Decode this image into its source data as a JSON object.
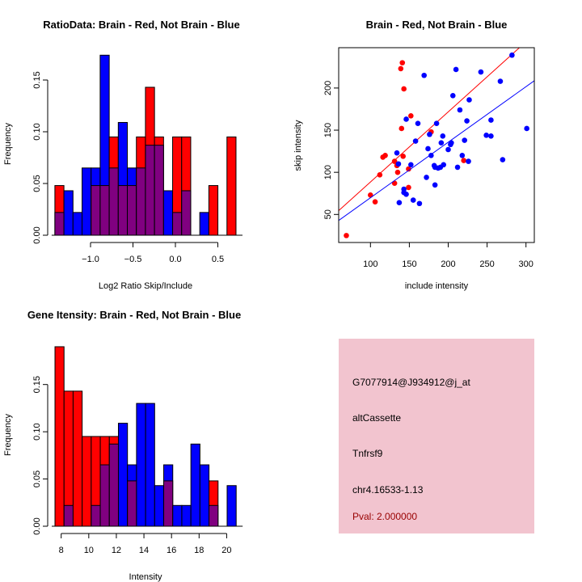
{
  "colors": {
    "red": "#ff0000",
    "blue": "#0000ff",
    "overlap": "#800080",
    "info_bg": "#f2c4cf",
    "pval": "#990000"
  },
  "chart_data": [
    {
      "type": "bar",
      "title": "RatioData: Brain - Red, Not Brain - Blue",
      "xlabel": "Log2 Ratio Skip/Include",
      "ylabel": "Frequency",
      "bin_start": -1.42,
      "bin_width": 0.1067,
      "xticks": [
        -1.0,
        -0.5,
        0.0,
        0.5
      ],
      "xtick_labels": [
        "−1.0",
        "−0.5",
        "0.0",
        "0.5"
      ],
      "yticks": [
        0,
        0.05,
        0.1,
        0.15
      ],
      "ytick_labels": [
        "0.00",
        "0.05",
        "0.10",
        "0.15"
      ],
      "series": [
        {
          "name": "Brain",
          "color": "red",
          "values": [
            0.048,
            0,
            0,
            0,
            0.048,
            0.048,
            0.095,
            0.048,
            0.048,
            0.095,
            0.143,
            0.095,
            0,
            0.095,
            0.095,
            0,
            0,
            0.048,
            0,
            0.095
          ]
        },
        {
          "name": "Not Brain",
          "color": "blue",
          "values": [
            0.022,
            0.043,
            0.022,
            0.065,
            0.065,
            0.174,
            0.065,
            0.109,
            0.065,
            0.065,
            0.087,
            0.087,
            0.043,
            0.022,
            0.043,
            0,
            0.022,
            0,
            0,
            0
          ]
        }
      ]
    },
    {
      "type": "scatter",
      "title": "Brain - Red, Not Brain - Blue",
      "xlabel": "include intensity",
      "ylabel": "skip intensity",
      "xlim": [
        59,
        310
      ],
      "ylim": [
        17,
        248
      ],
      "xticks": [
        100,
        150,
        200,
        250,
        300
      ],
      "xtick_labels": [
        "100",
        "150",
        "200",
        "250",
        "300"
      ],
      "yticks": [
        50,
        100,
        150,
        200
      ],
      "ytick_labels": [
        "50",
        "100",
        "150",
        "200"
      ],
      "series": [
        {
          "name": "Brain",
          "color": "red",
          "points": [
            [
              69,
              25
            ],
            [
              100,
              73
            ],
            [
              106,
              65
            ],
            [
              112,
              97
            ],
            [
              116,
              118
            ],
            [
              119,
              120
            ],
            [
              131,
              87
            ],
            [
              131,
              113
            ],
            [
              134,
              108
            ],
            [
              135,
              100
            ],
            [
              142,
              119
            ],
            [
              139,
              223
            ],
            [
              141,
              230
            ],
            [
              143,
              199
            ],
            [
              140,
              152
            ],
            [
              152,
              167
            ],
            [
              149,
              104
            ],
            [
              149,
              82
            ],
            [
              178,
              148
            ],
            [
              220,
              114
            ]
          ],
          "fit": {
            "slope": 0.832,
            "intercept": 5.3
          }
        },
        {
          "name": "Not Brain",
          "color": "blue",
          "points": [
            [
              134,
              123
            ],
            [
              136,
              110
            ],
            [
              137,
              64
            ],
            [
              143,
              80
            ],
            [
              143,
              76
            ],
            [
              146,
              74
            ],
            [
              146,
              163
            ],
            [
              152,
              109
            ],
            [
              155,
              67
            ],
            [
              158,
              137
            ],
            [
              161,
              158
            ],
            [
              163,
              63
            ],
            [
              169,
              215
            ],
            [
              172,
              94
            ],
            [
              174,
              128
            ],
            [
              176,
              145
            ],
            [
              178,
              120
            ],
            [
              182,
              108
            ],
            [
              183,
              106
            ],
            [
              187,
              105
            ],
            [
              190,
              106
            ],
            [
              194,
              109
            ],
            [
              183,
              85
            ],
            [
              185,
              158
            ],
            [
              191,
              135
            ],
            [
              193,
              143
            ],
            [
              200,
              127
            ],
            [
              203,
              133
            ],
            [
              204,
              135
            ],
            [
              206,
              191
            ],
            [
              210,
              222
            ],
            [
              212,
              106
            ],
            [
              215,
              174
            ],
            [
              218,
              120
            ],
            [
              221,
              138
            ],
            [
              224,
              161
            ],
            [
              226,
              113
            ],
            [
              227,
              186
            ],
            [
              242,
              219
            ],
            [
              249,
              144
            ],
            [
              255,
              143
            ],
            [
              255,
              162
            ],
            [
              267,
              208
            ],
            [
              270,
              115
            ],
            [
              282,
              239
            ],
            [
              301,
              152
            ]
          ],
          "fit": {
            "slope": 0.659,
            "intercept": 3.9
          }
        }
      ]
    },
    {
      "type": "bar",
      "title": "Gene Itensity: Brain - Red, Not Brain - Blue",
      "xlabel": "Intensity",
      "ylabel": "Frequency",
      "bin_start": 7.55,
      "bin_width": 0.657,
      "xticks": [
        8,
        10,
        12,
        14,
        16,
        18,
        20
      ],
      "xtick_labels": [
        "8",
        "10",
        "12",
        "14",
        "16",
        "18",
        "20"
      ],
      "yticks": [
        0,
        0.05,
        0.1,
        0.15
      ],
      "ytick_labels": [
        "0.00",
        "0.05",
        "0.10",
        "0.15"
      ],
      "series": [
        {
          "name": "Brain",
          "color": "red",
          "values": [
            0.19,
            0.143,
            0.143,
            0.095,
            0.095,
            0.095,
            0.095,
            0,
            0.048,
            0,
            0,
            0,
            0.048,
            0,
            0,
            0,
            0,
            0.048,
            0,
            0
          ]
        },
        {
          "name": "Not Brain",
          "color": "blue",
          "values": [
            0,
            0.022,
            0,
            0,
            0.022,
            0.065,
            0.087,
            0.109,
            0.065,
            0.13,
            0.13,
            0.043,
            0.065,
            0.022,
            0.022,
            0.087,
            0.065,
            0.022,
            0,
            0.043
          ]
        }
      ]
    }
  ],
  "info": {
    "probe": "G7077914@J934912@j_at",
    "event_type": "altCassette",
    "gene": "Tnfrsf9",
    "location": "chr4.16533-1.13",
    "pval": "Pval: 2.000000"
  }
}
